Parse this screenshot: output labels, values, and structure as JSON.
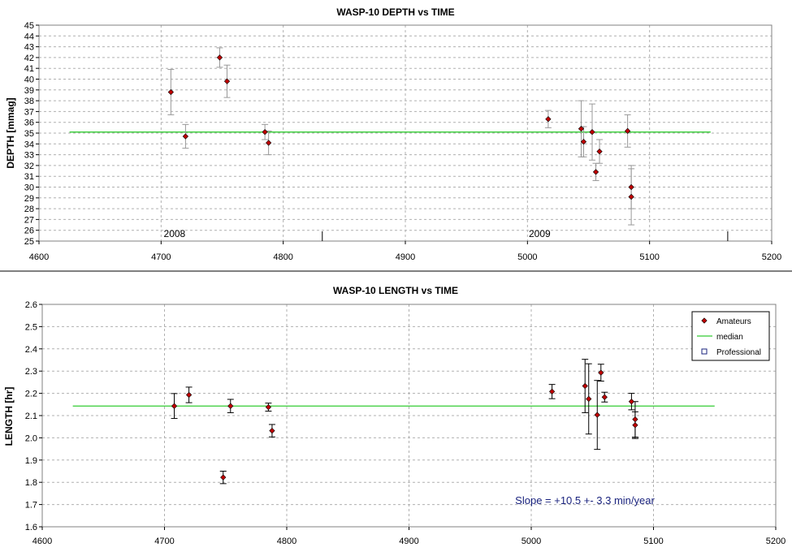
{
  "chart_data": [
    {
      "type": "scatter",
      "title": "WASP-10 DEPTH vs TIME",
      "xlabel": "",
      "ylabel": "DEPTH [mmag]",
      "xlim": [
        4600,
        5200
      ],
      "ylim": [
        25,
        45
      ],
      "xticks": [
        4600,
        4700,
        4800,
        4900,
        5000,
        5100,
        5200
      ],
      "yticks": [
        25,
        26,
        27,
        28,
        29,
        30,
        31,
        32,
        33,
        34,
        35,
        36,
        37,
        38,
        39,
        40,
        41,
        42,
        43,
        44,
        45
      ],
      "grid": true,
      "year_labels": [
        {
          "text": "2008",
          "x": 4711
        },
        {
          "text": "2009",
          "x": 5010
        }
      ],
      "year_markers": [
        4832,
        5164
      ],
      "median": {
        "value": 35.1,
        "x_start": 4625,
        "x_end": 5150,
        "color": "#33cc33"
      },
      "marker_color": "#c00000",
      "errorbar_color": "#999999",
      "points": [
        {
          "x": 4708,
          "y": 38.8,
          "err": 2.1
        },
        {
          "x": 4720,
          "y": 34.7,
          "err": 1.1
        },
        {
          "x": 4748,
          "y": 42.0,
          "err": 0.9
        },
        {
          "x": 4754,
          "y": 39.8,
          "err": 1.5
        },
        {
          "x": 4785,
          "y": 35.1,
          "err": 0.7
        },
        {
          "x": 4788,
          "y": 34.1,
          "err": 1.1
        },
        {
          "x": 5017,
          "y": 36.3,
          "err": 0.8
        },
        {
          "x": 5044,
          "y": 35.4,
          "err": 2.6
        },
        {
          "x": 5046,
          "y": 34.2,
          "err": 1.4
        },
        {
          "x": 5053,
          "y": 35.1,
          "err": 2.6
        },
        {
          "x": 5056,
          "y": 31.4,
          "err": 0.8
        },
        {
          "x": 5059,
          "y": 33.3,
          "err": 1.1
        },
        {
          "x": 5082,
          "y": 35.2,
          "err": 1.5
        },
        {
          "x": 5085,
          "y": 30.0,
          "err": 2.0
        },
        {
          "x": 5085,
          "y": 29.1,
          "err": 2.6
        }
      ]
    },
    {
      "type": "scatter",
      "title": "WASP-10 LENGTH vs TIME",
      "xlabel": "",
      "ylabel": "LENGTH [hr]",
      "xlim": [
        4600,
        5200
      ],
      "ylim": [
        1.6,
        2.6
      ],
      "xticks": [
        4600,
        4700,
        4800,
        4900,
        5000,
        5100,
        5200
      ],
      "yticks": [
        1.6,
        1.7,
        1.8,
        1.9,
        2.0,
        2.1,
        2.2,
        2.3,
        2.4,
        2.5,
        2.6
      ],
      "ytick_labels": [
        "1.6",
        "1.7",
        "1.8",
        "1.9",
        "2.0",
        "2.1",
        "2.2",
        "2.3",
        "2.4",
        "2.5",
        "2.6"
      ],
      "grid": true,
      "median": {
        "value": 2.143,
        "x_start": 4625,
        "x_end": 5150,
        "color": "#33cc33"
      },
      "marker_color": "#c00000",
      "errorbar_color": "#000000",
      "legend": {
        "placement": "top-right",
        "entries": [
          {
            "label": "Amateurs",
            "symbol": "diamond",
            "color": "#c00000"
          },
          {
            "label": "median",
            "symbol": "line",
            "color": "#33cc33"
          },
          {
            "label": "Professional",
            "symbol": "square",
            "color": "#1a237e"
          }
        ]
      },
      "annotation": "Slope = +10.5 +- 3.3 min/year",
      "points": [
        {
          "x": 4708,
          "y": 2.143,
          "err": 0.056
        },
        {
          "x": 4720,
          "y": 2.193,
          "err": 0.035
        },
        {
          "x": 4748,
          "y": 1.822,
          "err": 0.028
        },
        {
          "x": 4754,
          "y": 2.143,
          "err": 0.03
        },
        {
          "x": 4785,
          "y": 2.138,
          "err": 0.018
        },
        {
          "x": 4788,
          "y": 2.032,
          "err": 0.028
        },
        {
          "x": 5017,
          "y": 2.208,
          "err": 0.032
        },
        {
          "x": 5044,
          "y": 2.233,
          "err": 0.12
        },
        {
          "x": 5047,
          "y": 2.175,
          "err": 0.158
        },
        {
          "x": 5054,
          "y": 2.103,
          "err": 0.155
        },
        {
          "x": 5057,
          "y": 2.293,
          "err": 0.038
        },
        {
          "x": 5060,
          "y": 2.183,
          "err": 0.022
        },
        {
          "x": 5082,
          "y": 2.163,
          "err": 0.037
        },
        {
          "x": 5085,
          "y": 2.083,
          "err": 0.08
        },
        {
          "x": 5085,
          "y": 2.057,
          "err": 0.06
        }
      ]
    }
  ]
}
